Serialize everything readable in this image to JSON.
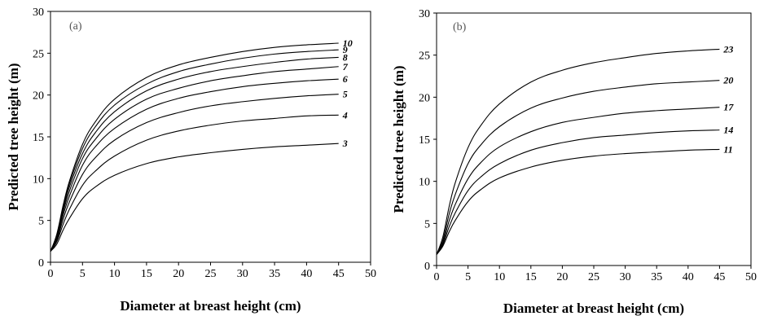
{
  "chart_data": [
    {
      "type": "line",
      "panel_label": "(a)",
      "xlabel": "Diameter at breast height (cm)",
      "ylabel": "Predicted tree height (m)",
      "xlim": [
        0,
        50
      ],
      "ylim": [
        0,
        30
      ],
      "xticks": [
        0,
        5,
        10,
        15,
        20,
        25,
        30,
        35,
        40,
        45,
        50
      ],
      "yticks": [
        0,
        5,
        10,
        15,
        20,
        25,
        30
      ],
      "grid": false,
      "series": [
        {
          "name": "3",
          "x": [
            0,
            1,
            2,
            3,
            5,
            7,
            10,
            15,
            20,
            25,
            30,
            35,
            40,
            45
          ],
          "y": [
            1.3,
            2.2,
            3.9,
            5.3,
            7.6,
            9.0,
            10.4,
            11.8,
            12.6,
            13.1,
            13.5,
            13.8,
            14.0,
            14.2
          ]
        },
        {
          "name": "4",
          "x": [
            0,
            1,
            2,
            3,
            5,
            7,
            10,
            15,
            20,
            25,
            30,
            35,
            40,
            45
          ],
          "y": [
            1.3,
            2.5,
            4.6,
            6.4,
            9.2,
            10.9,
            12.7,
            14.6,
            15.7,
            16.4,
            16.9,
            17.2,
            17.5,
            17.6
          ]
        },
        {
          "name": "5",
          "x": [
            0,
            1,
            2,
            3,
            5,
            7,
            10,
            15,
            20,
            25,
            30,
            35,
            40,
            45
          ],
          "y": [
            1.3,
            2.7,
            5.2,
            7.3,
            10.5,
            12.5,
            14.6,
            16.7,
            17.9,
            18.7,
            19.2,
            19.6,
            19.9,
            20.1
          ]
        },
        {
          "name": "6",
          "x": [
            0,
            1,
            2,
            3,
            5,
            7,
            10,
            15,
            20,
            25,
            30,
            35,
            40,
            45
          ],
          "y": [
            1.3,
            2.9,
            5.7,
            8.0,
            11.6,
            13.8,
            16.0,
            18.3,
            19.6,
            20.4,
            21.0,
            21.4,
            21.7,
            21.9
          ]
        },
        {
          "name": "7",
          "x": [
            0,
            1,
            2,
            3,
            5,
            7,
            10,
            15,
            20,
            25,
            30,
            35,
            40,
            45
          ],
          "y": [
            1.3,
            3.0,
            6.1,
            8.6,
            12.4,
            14.7,
            17.1,
            19.5,
            20.8,
            21.7,
            22.3,
            22.8,
            23.1,
            23.4
          ]
        },
        {
          "name": "8",
          "x": [
            0,
            1,
            2,
            3,
            5,
            7,
            10,
            15,
            20,
            25,
            30,
            35,
            40,
            45
          ],
          "y": [
            1.3,
            3.2,
            6.4,
            9.1,
            13.0,
            15.5,
            18.0,
            20.5,
            21.9,
            22.8,
            23.4,
            23.9,
            24.3,
            24.5
          ]
        },
        {
          "name": "9",
          "x": [
            0,
            1,
            2,
            3,
            5,
            7,
            10,
            15,
            20,
            25,
            30,
            35,
            40,
            45
          ],
          "y": [
            1.3,
            3.3,
            6.7,
            9.5,
            13.6,
            16.2,
            18.8,
            21.3,
            22.8,
            23.7,
            24.4,
            24.9,
            25.2,
            25.4
          ]
        },
        {
          "name": "10",
          "x": [
            0,
            1,
            2,
            3,
            5,
            7,
            10,
            15,
            20,
            25,
            30,
            35,
            40,
            45
          ],
          "y": [
            1.3,
            3.4,
            6.9,
            9.8,
            14.1,
            16.8,
            19.5,
            22.1,
            23.6,
            24.5,
            25.2,
            25.7,
            26.0,
            26.2
          ]
        }
      ]
    },
    {
      "type": "line",
      "panel_label": "(b)",
      "xlabel": "Diameter at breast height (cm)",
      "ylabel": "Predicted tree height (m)",
      "xlim": [
        0,
        50
      ],
      "ylim": [
        0,
        30
      ],
      "xticks": [
        0,
        5,
        10,
        15,
        20,
        25,
        30,
        35,
        40,
        45,
        50
      ],
      "yticks": [
        0,
        5,
        10,
        15,
        20,
        25,
        30
      ],
      "grid": false,
      "series": [
        {
          "name": "11",
          "x": [
            0,
            1,
            2,
            3,
            5,
            7,
            10,
            15,
            20,
            25,
            30,
            35,
            40,
            45
          ],
          "y": [
            1.3,
            2.3,
            4.0,
            5.4,
            7.6,
            9.0,
            10.4,
            11.7,
            12.5,
            13.0,
            13.3,
            13.5,
            13.7,
            13.8
          ]
        },
        {
          "name": "14",
          "x": [
            0,
            1,
            2,
            3,
            5,
            7,
            10,
            15,
            20,
            25,
            30,
            35,
            40,
            45
          ],
          "y": [
            1.3,
            2.5,
            4.6,
            6.3,
            8.9,
            10.5,
            12.1,
            13.7,
            14.6,
            15.2,
            15.5,
            15.8,
            16.0,
            16.1
          ]
        },
        {
          "name": "17",
          "x": [
            0,
            1,
            2,
            3,
            5,
            7,
            10,
            15,
            20,
            25,
            30,
            35,
            40,
            45
          ],
          "y": [
            1.3,
            2.7,
            5.3,
            7.3,
            10.3,
            12.2,
            14.1,
            15.9,
            17.0,
            17.6,
            18.1,
            18.4,
            18.6,
            18.8
          ]
        },
        {
          "name": "20",
          "x": [
            0,
            1,
            2,
            3,
            5,
            7,
            10,
            15,
            20,
            25,
            30,
            35,
            40,
            45
          ],
          "y": [
            1.3,
            3.0,
            6.1,
            8.5,
            12.1,
            14.3,
            16.5,
            18.7,
            19.9,
            20.7,
            21.2,
            21.6,
            21.8,
            22.0
          ]
        },
        {
          "name": "23",
          "x": [
            0,
            1,
            2,
            3,
            5,
            7,
            10,
            15,
            20,
            25,
            30,
            35,
            40,
            45
          ],
          "y": [
            1.3,
            3.4,
            7.0,
            9.9,
            14.0,
            16.6,
            19.2,
            21.8,
            23.2,
            24.1,
            24.7,
            25.2,
            25.5,
            25.7
          ]
        }
      ]
    }
  ]
}
